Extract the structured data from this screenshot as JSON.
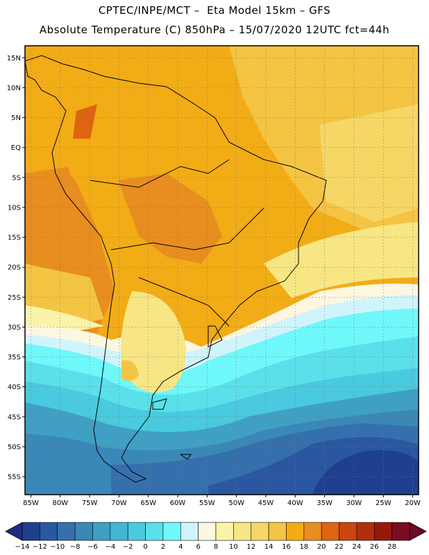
{
  "header": {
    "line1": "CPTEC/INPE/MCT –  Eta Model 15km – GFS",
    "line2": "Absolute Temperature (C) 850hPa – 15/07/2020 12UTC fct=44h"
  },
  "axes": {
    "lat_labels": [
      "15N",
      "10N",
      "5N",
      "EQ",
      "5S",
      "10S",
      "15S",
      "20S",
      "25S",
      "30S",
      "35S",
      "40S",
      "45S",
      "50S",
      "55S"
    ],
    "lon_labels": [
      "85W",
      "80W",
      "75W",
      "70W",
      "65W",
      "60W",
      "55W",
      "50W",
      "45W",
      "40W",
      "35W",
      "30W",
      "25W",
      "20W"
    ],
    "lat_extent": [
      17,
      -58
    ],
    "lon_extent": [
      -86,
      -19
    ]
  },
  "colorbar": {
    "labels": [
      "-14",
      "-12",
      "-10",
      "-8",
      "-6",
      "-4",
      "-2",
      "0",
      "2",
      "4",
      "6",
      "8",
      "10",
      "12",
      "14",
      "16",
      "18",
      "20",
      "22",
      "24",
      "26",
      "28"
    ],
    "colors": [
      "#1f3f8f",
      "#2a57a0",
      "#3570ad",
      "#3a88b8",
      "#3fa0c4",
      "#42b6d2",
      "#49cade",
      "#5ae0ea",
      "#6ff8fa",
      "#d0f4fb",
      "#fdf7e2",
      "#fbf3a8",
      "#f8e685",
      "#f6d766",
      "#f4c443",
      "#f2ac16",
      "#e88d1f",
      "#de6411",
      "#cc4410",
      "#b32e0c",
      "#94190b",
      "#7b0d20"
    ]
  }
}
